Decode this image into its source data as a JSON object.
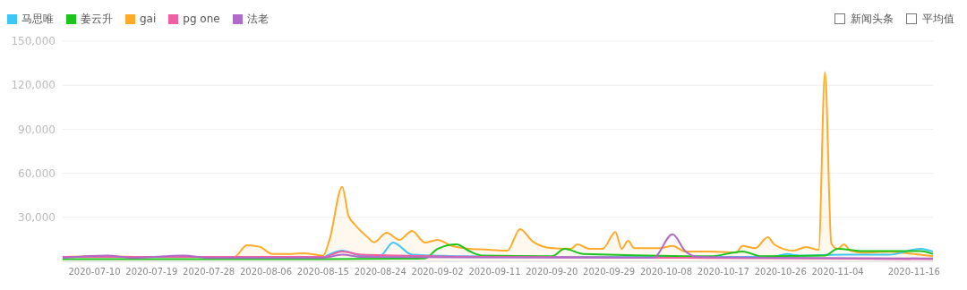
{
  "chart_data": {
    "type": "line",
    "legend": "top left",
    "grid": "y",
    "marker": "none",
    "line_style": "solid",
    "xlim": [
      "2020-07-05",
      "2020-11-19"
    ],
    "xticks": [
      "2020-07-10",
      "2020-07-19",
      "2020-07-28",
      "2020-08-06",
      "2020-08-15",
      "2020-08-24",
      "2020-09-02",
      "2020-09-11",
      "2020-09-20",
      "2020-09-29",
      "2020-10-08",
      "2020-10-17",
      "2020-10-26",
      "2020-11-04",
      "2020-11-16"
    ],
    "ylim": [
      0,
      150000
    ],
    "yticks": [
      {
        "value": 30000,
        "label": "30,000"
      },
      {
        "value": 60000,
        "label": "60,000"
      },
      {
        "value": 90000,
        "label": "90,000"
      },
      {
        "value": 120000,
        "label": "120,000"
      },
      {
        "value": 150000,
        "label": "150,000"
      }
    ],
    "annotations": [
      "新闻头条",
      "平均值"
    ],
    "series": [
      {
        "name": "马思唯",
        "color": "#3ec6f5",
        "x": [
          "2020-08-15",
          "2020-08-18",
          "2020-08-21",
          "2020-08-24",
          "2020-08-26",
          "2020-08-29",
          "2020-09-05",
          "2020-09-20",
          "2020-10-08",
          "2020-10-20",
          "2020-10-25",
          "2020-10-27",
          "2020-10-29",
          "2020-11-05",
          "2020-11-12",
          "2020-11-17",
          "2020-11-19"
        ],
        "values": [
          2500,
          7300,
          4000,
          4000,
          12800,
          4500,
          3500,
          3000,
          3200,
          3000,
          3200,
          5000,
          4000,
          4500,
          4500,
          8500,
          6700
        ]
      },
      {
        "name": "姜云升",
        "color": "#1ec41e",
        "x": [
          "2020-07-05",
          "2020-08-15",
          "2020-08-27",
          "2020-08-31",
          "2020-09-02",
          "2020-09-05",
          "2020-09-07",
          "2020-09-09",
          "2020-09-20",
          "2020-09-22",
          "2020-09-25",
          "2020-10-15",
          "2020-10-20",
          "2020-10-23",
          "2020-11-02",
          "2020-11-04",
          "2020-11-08",
          "2020-11-17",
          "2020-11-19"
        ],
        "values": [
          1500,
          1500,
          1800,
          2000,
          8500,
          11600,
          7000,
          4000,
          3500,
          8500,
          5000,
          3500,
          6700,
          3500,
          4000,
          8500,
          7000,
          7000,
          5000
        ]
      },
      {
        "name": "gai",
        "type": "area",
        "color": "#ffaa2a",
        "x": [
          "2020-07-05",
          "2020-07-10",
          "2020-07-20",
          "2020-08-01",
          "2020-08-03",
          "2020-08-05",
          "2020-08-07",
          "2020-08-09",
          "2020-08-12",
          "2020-08-15",
          "2020-08-16",
          "2020-08-18",
          "2020-08-19",
          "2020-08-20",
          "2020-08-22",
          "2020-08-23",
          "2020-08-25",
          "2020-08-27",
          "2020-08-29",
          "2020-08-31",
          "2020-09-02",
          "2020-09-04",
          "2020-09-07",
          "2020-09-10",
          "2020-09-13",
          "2020-09-15",
          "2020-09-17",
          "2020-09-20",
          "2020-09-23",
          "2020-09-24",
          "2020-09-26",
          "2020-09-28",
          "2020-09-30",
          "2020-10-01",
          "2020-10-02",
          "2020-10-03",
          "2020-10-07",
          "2020-10-09",
          "2020-10-11",
          "2020-10-15",
          "2020-10-19",
          "2020-10-20",
          "2020-10-22",
          "2020-10-24",
          "2020-10-25",
          "2020-10-28",
          "2020-10-30",
          "2020-11-01",
          "2020-11-02",
          "2020-11-03",
          "2020-11-04",
          "2020-11-05",
          "2020-11-06",
          "2020-11-08",
          "2020-11-12",
          "2020-11-15",
          "2020-11-19"
        ],
        "values": [
          3000,
          3500,
          3000,
          3000,
          11000,
          10000,
          5000,
          5000,
          5500,
          4000,
          14700,
          50800,
          31000,
          25000,
          16500,
          13000,
          19500,
          14700,
          20800,
          12800,
          14700,
          11000,
          8500,
          8000,
          7300,
          22000,
          13500,
          9000,
          8500,
          11600,
          8500,
          8500,
          20000,
          8500,
          14000,
          9000,
          9000,
          10500,
          6700,
          6700,
          6000,
          10500,
          9000,
          16500,
          11600,
          7300,
          9800,
          7900,
          129000,
          12200,
          8500,
          11600,
          7300,
          6000,
          6500,
          5500,
          3500
        ]
      },
      {
        "name": "pg one",
        "color": "#f25ea2",
        "x": [
          "2020-07-05",
          "2020-08-15",
          "2020-08-18",
          "2020-08-21",
          "2020-08-27",
          "2020-09-05",
          "2020-10-08",
          "2020-11-01",
          "2020-11-19"
        ],
        "values": [
          3000,
          3000,
          6700,
          4500,
          4000,
          3200,
          2500,
          2000,
          1500
        ]
      },
      {
        "name": "法老",
        "color": "#b06ac8",
        "x": [
          "2020-07-05",
          "2020-07-12",
          "2020-07-16",
          "2020-07-24",
          "2020-07-28",
          "2020-08-15",
          "2020-08-18",
          "2020-08-21",
          "2020-10-06",
          "2020-10-09",
          "2020-10-11",
          "2020-10-13",
          "2020-10-25",
          "2020-11-19"
        ],
        "values": [
          2500,
          4000,
          2500,
          4000,
          2500,
          2500,
          4500,
          3000,
          2500,
          18400,
          7000,
          3000,
          2500,
          2000
        ]
      }
    ]
  }
}
